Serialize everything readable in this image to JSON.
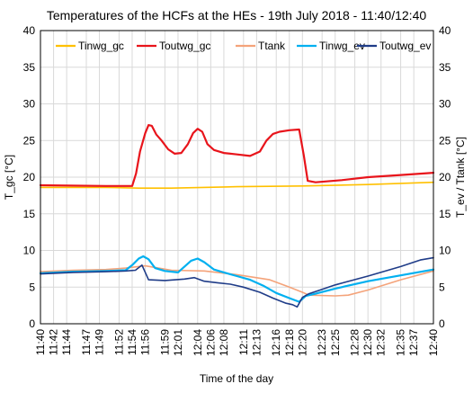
{
  "chart_data": {
    "type": "line",
    "title": "Temperatures of the HCFs at the HEs - 19th July 2018 - 11:40/12:40",
    "xlabel": "Time of the day",
    "ylabel_left": "T_gc [°C]",
    "ylabel_right": "T_ev / Ttank [°C]",
    "ylim": [
      0,
      40
    ],
    "yticks": [
      0,
      5,
      10,
      15,
      20,
      25,
      30,
      35,
      40
    ],
    "xlim": [
      0,
      60
    ],
    "xtick_minutes": [
      0,
      2,
      4,
      7,
      9,
      12,
      14,
      16,
      19,
      21,
      24,
      26,
      28,
      31,
      33,
      36,
      38,
      40,
      43,
      45,
      48,
      50,
      52,
      55,
      57,
      60
    ],
    "xtick_labels": [
      "11:40",
      "11:42",
      "11:44",
      "11:47",
      "11:49",
      "11:52",
      "11:54",
      "11:56",
      "11:59",
      "12:01",
      "12:04",
      "12:06",
      "12:08",
      "12:11",
      "12:13",
      "12:16",
      "12:18",
      "12:20",
      "12:23",
      "12:25",
      "12:28",
      "12:30",
      "12:32",
      "12:35",
      "12:37",
      "12:40"
    ],
    "grid": true,
    "legend_position": "top",
    "series": [
      {
        "name": "Tinwg_gc",
        "color": "#FFC000",
        "x": [
          0,
          10,
          15,
          20,
          30,
          40,
          50,
          60
        ],
        "y": [
          18.6,
          18.6,
          18.5,
          18.5,
          18.7,
          18.8,
          19.0,
          19.3
        ]
      },
      {
        "name": "Toutwg_gc",
        "color": "#E8141B",
        "x": [
          0,
          10,
          14,
          14.6,
          15.2,
          16,
          16.5,
          17,
          17.7,
          18.5,
          19.5,
          20.5,
          21.5,
          22.5,
          23.3,
          24,
          24.7,
          25.5,
          26.5,
          28,
          30,
          32,
          33.5,
          34.5,
          35.5,
          36.5,
          38,
          39.5,
          40.2,
          40.8,
          42,
          46,
          50,
          55,
          60
        ],
        "y": [
          18.9,
          18.8,
          18.8,
          20.5,
          23.5,
          26,
          27.1,
          27,
          25.8,
          25,
          23.8,
          23.2,
          23.3,
          24.5,
          26,
          26.6,
          26.2,
          24.5,
          23.7,
          23.3,
          23.1,
          22.9,
          23.5,
          25,
          25.9,
          26.2,
          26.4,
          26.5,
          23,
          19.5,
          19.3,
          19.6,
          20.0,
          20.3,
          20.6
        ]
      },
      {
        "name": "Ttank",
        "color": "#F4A37A",
        "x": [
          0,
          5,
          10,
          13,
          16,
          18,
          20,
          25,
          30,
          35,
          38,
          40,
          41,
          45,
          47,
          50,
          55,
          60
        ],
        "y": [
          7.1,
          7.3,
          7.4,
          7.6,
          7.9,
          7.6,
          7.3,
          7.2,
          6.7,
          6.0,
          5.0,
          4.3,
          3.9,
          3.8,
          3.9,
          4.6,
          6.0,
          7.2
        ]
      },
      {
        "name": "Tinwg_ev",
        "color": "#00B0F0",
        "x": [
          0,
          5,
          10,
          13,
          14,
          15,
          15.7,
          16.5,
          17.5,
          19,
          21,
          23,
          24,
          25,
          26.5,
          28,
          30,
          32,
          34,
          36,
          38,
          39.5,
          40.5,
          42,
          45,
          50,
          55,
          60
        ],
        "y": [
          6.9,
          7.1,
          7.2,
          7.3,
          8.0,
          8.9,
          9.2,
          8.8,
          7.6,
          7.2,
          7.0,
          8.6,
          8.9,
          8.4,
          7.4,
          7.0,
          6.5,
          6.0,
          5.2,
          4.2,
          3.5,
          3.0,
          3.8,
          4.1,
          4.8,
          5.8,
          6.6,
          7.4
        ]
      },
      {
        "name": "Toutwg_ev",
        "color": "#1F3C88",
        "x": [
          0,
          5,
          10,
          13,
          14.5,
          15.5,
          16.5,
          19,
          22,
          23.5,
          25,
          27,
          29,
          31,
          33.5,
          35.5,
          37.5,
          38.5,
          39.2,
          40,
          41,
          43,
          45,
          50,
          55,
          58,
          60
        ],
        "y": [
          6.8,
          7.0,
          7.1,
          7.2,
          7.3,
          8.0,
          6.0,
          5.9,
          6.1,
          6.3,
          5.8,
          5.6,
          5.4,
          5.0,
          4.3,
          3.5,
          2.8,
          2.6,
          2.3,
          3.6,
          4.1,
          4.7,
          5.3,
          6.5,
          7.8,
          8.7,
          9.0
        ]
      }
    ]
  }
}
